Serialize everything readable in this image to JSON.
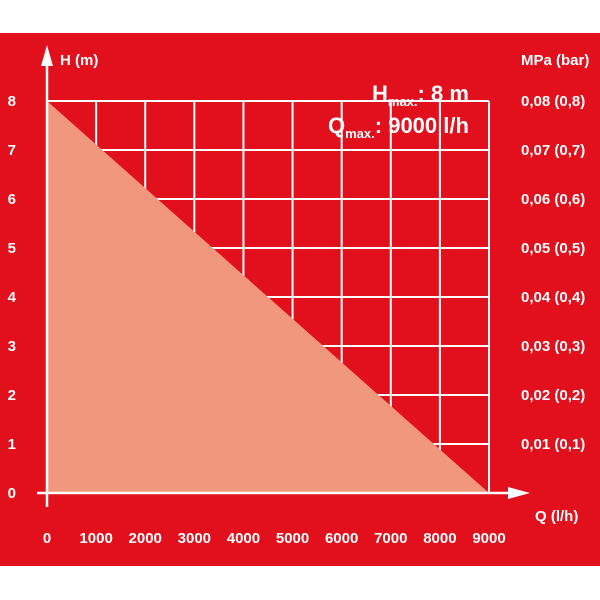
{
  "colors": {
    "background": "#e2101c",
    "area": "#f0977d",
    "grid": "#ffffff"
  },
  "chart_data": {
    "type": "area",
    "x": [
      0,
      9000
    ],
    "y": [
      8,
      0
    ],
    "xlim": [
      0,
      9000
    ],
    "ylim": [
      0,
      8
    ],
    "x_ticks": [
      "0",
      "1000",
      "2000",
      "3000",
      "4000",
      "5000",
      "6000",
      "7000",
      "8000",
      "9000"
    ],
    "y_ticks": [
      "0",
      "1",
      "2",
      "3",
      "4",
      "5",
      "6",
      "7",
      "8"
    ],
    "y2_ticks": [
      "0,01 (0,1)",
      "0,02 (0,2)",
      "0,03 (0,3)",
      "0,04 (0,4)",
      "0,05 (0,5)",
      "0,06 (0,6)",
      "0,07 (0,7)",
      "0,08 (0,8)"
    ],
    "xlabel": "Q (l/h)",
    "ylabel": "H (m)",
    "y2label": "MPa (bar)",
    "grid": true,
    "annotations": {
      "hmax_main": "H",
      "hmax_sub": "max.",
      "hmax_value": ": 8 m",
      "qmax_main": "Q",
      "qmax_sub": "max.",
      "qmax_value": ": 9000 l/h"
    }
  }
}
